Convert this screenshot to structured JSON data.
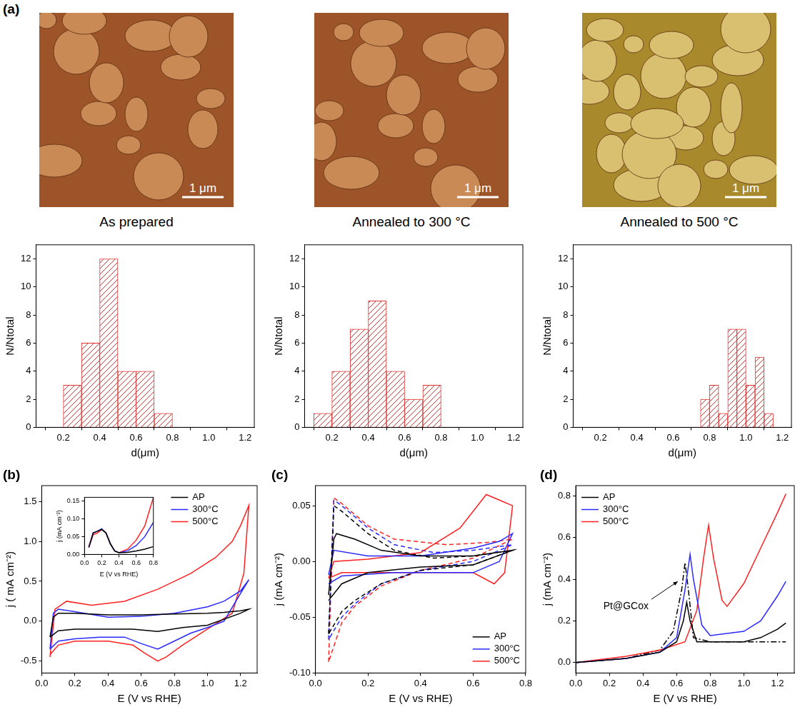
{
  "figure_a": {
    "panel": "(a)",
    "images": [
      {
        "caption": "As prepared",
        "scale_bar": "1 μm"
      },
      {
        "caption": "Annealed to 300 °C",
        "scale_bar": "1 μm"
      },
      {
        "caption": "Annealed to 500 °C",
        "scale_bar": "1 μm"
      }
    ]
  },
  "chart_data": [
    {
      "type": "histogram",
      "x_label": "d(μm)",
      "y_label": "N/Ntotal",
      "bins": [
        0.2,
        0.3,
        0.4,
        0.5,
        0.6,
        0.7,
        0.8
      ],
      "values": [
        3,
        6,
        12,
        4,
        4,
        1
      ],
      "color": "#e03030",
      "xlim": [
        0.05,
        1.25
      ],
      "xticks": [
        0.2,
        0.4,
        0.6,
        0.8,
        {
          "value": 1.0,
          "label": "1.0"
        },
        1.2
      ],
      "ylim": [
        0,
        13
      ],
      "yticks": [
        0,
        2,
        4,
        6,
        8,
        10,
        12
      ]
    },
    {
      "type": "histogram",
      "x_label": "d(μm)",
      "y_label": "N/Ntotal",
      "bins": [
        0.1,
        0.2,
        0.3,
        0.4,
        0.5,
        0.6,
        0.7,
        0.8
      ],
      "values": [
        1,
        4,
        7,
        9,
        4,
        2,
        3
      ],
      "color": "#e03030",
      "xlim": [
        0.05,
        1.25
      ],
      "xticks": [
        0.2,
        0.4,
        0.6,
        0.8,
        {
          "value": 1.0,
          "label": "1.0"
        },
        1.2
      ],
      "ylim": [
        0,
        13
      ],
      "yticks": [
        0,
        2,
        4,
        6,
        8,
        10,
        12
      ]
    },
    {
      "type": "histogram",
      "x_label": "d(μm)",
      "y_label": "N/Ntotal",
      "bins": [
        0.75,
        0.8,
        0.85,
        0.9,
        0.95,
        1.0,
        1.05,
        1.1,
        1.15
      ],
      "values": [
        2,
        3,
        1,
        7,
        7,
        3,
        5,
        1
      ],
      "color": "#e03030",
      "xlim": [
        0.05,
        1.25
      ],
      "xticks": [
        0.2,
        0.4,
        0.6,
        0.8,
        {
          "value": 1.0,
          "label": "1.0"
        },
        1.2
      ],
      "ylim": [
        0,
        13
      ],
      "yticks": [
        0,
        2,
        4,
        6,
        8,
        10,
        12
      ]
    },
    {
      "type": "line",
      "panel": "(b)",
      "x_label": "E (V vs RHE)",
      "y_label": "j ( mA cm⁻²)",
      "xlim": [
        0,
        1.3
      ],
      "xticks": [
        {
          "value": 0,
          "label": "0.0"
        },
        0.2,
        0.4,
        0.6,
        0.8,
        {
          "value": 1.0,
          "label": "1.0"
        },
        1.2
      ],
      "ylim": [
        -0.65,
        1.7
      ],
      "yticks": [
        -0.5,
        {
          "value": 0,
          "label": "0.0"
        },
        0.5,
        {
          "value": 1.0,
          "label": "1.0"
        },
        1.5
      ],
      "legend": "upper center",
      "series": [
        {
          "name": "AP",
          "color": "#000000",
          "line_style": "solid",
          "x": [
            0.05,
            0.07,
            0.1,
            0.2,
            0.4,
            0.6,
            0.8,
            1.0,
            1.1,
            1.2,
            1.25,
            1.2,
            1.0,
            0.85,
            0.7,
            0.55,
            0.4,
            0.2,
            0.1,
            0.05
          ],
          "values": [
            -0.2,
            0.05,
            0.1,
            0.1,
            0.08,
            0.08,
            0.09,
            0.1,
            0.11,
            0.13,
            0.15,
            0.1,
            -0.05,
            -0.08,
            -0.13,
            -0.1,
            -0.1,
            -0.1,
            -0.12,
            -0.2
          ]
        },
        {
          "name": "300°C",
          "color": "#2a2aff",
          "line_style": "solid",
          "x": [
            0.05,
            0.07,
            0.1,
            0.2,
            0.4,
            0.6,
            0.8,
            1.0,
            1.1,
            1.2,
            1.25,
            1.2,
            1.1,
            1.0,
            0.9,
            0.8,
            0.7,
            0.6,
            0.5,
            0.35,
            0.2,
            0.1,
            0.05
          ],
          "values": [
            -0.35,
            0.1,
            0.15,
            0.12,
            0.05,
            0.06,
            0.1,
            0.18,
            0.25,
            0.38,
            0.52,
            0.35,
            0.0,
            -0.08,
            -0.15,
            -0.25,
            -0.35,
            -0.28,
            -0.2,
            -0.2,
            -0.22,
            -0.25,
            -0.35
          ]
        },
        {
          "name": "500°C",
          "color": "#ff2020",
          "line_style": "solid",
          "x": [
            0.05,
            0.08,
            0.15,
            0.3,
            0.5,
            0.7,
            0.9,
            1.05,
            1.15,
            1.2,
            1.25,
            1.22,
            1.15,
            1.0,
            0.85,
            0.75,
            0.7,
            0.62,
            0.55,
            0.4,
            0.2,
            0.1,
            0.05
          ],
          "values": [
            -0.45,
            0.15,
            0.25,
            0.2,
            0.25,
            0.4,
            0.6,
            0.8,
            1.0,
            1.2,
            1.45,
            0.6,
            0.1,
            -0.1,
            -0.3,
            -0.45,
            -0.5,
            -0.4,
            -0.3,
            -0.25,
            -0.25,
            -0.3,
            -0.42
          ]
        }
      ],
      "inset": {
        "type": "line",
        "x_label": "E (V vs RHE)",
        "y_label": "j (mA cm⁻²)",
        "xlim": [
          0,
          0.8
        ],
        "xticks": [
          {
            "value": 0,
            "label": "0.0"
          },
          0.2,
          0.4,
          0.6,
          0.8
        ],
        "ylim": [
          0,
          0.16
        ],
        "yticks": [
          {
            "value": 0,
            "label": "0.00"
          },
          0.05,
          {
            "value": 0.1,
            "label": "0.10"
          },
          0.15
        ],
        "series": [
          {
            "color": "#000000",
            "line_style": "solid",
            "x": [
              0.05,
              0.1,
              0.15,
              0.2,
              0.25,
              0.3,
              0.35,
              0.4,
              0.5,
              0.6,
              0.7,
              0.8
            ],
            "values": [
              0.02,
              0.06,
              0.065,
              0.07,
              0.06,
              0.03,
              0.01,
              0.005,
              0.006,
              0.01,
              0.015,
              0.022
            ]
          },
          {
            "color": "#2a2aff",
            "line_style": "solid",
            "x": [
              0.05,
              0.1,
              0.15,
              0.2,
              0.25,
              0.3,
              0.35,
              0.4,
              0.5,
              0.6,
              0.7,
              0.8
            ],
            "values": [
              0.02,
              0.06,
              0.065,
              0.072,
              0.06,
              0.03,
              0.01,
              0.005,
              0.01,
              0.025,
              0.05,
              0.09
            ]
          },
          {
            "color": "#ff2020",
            "line_style": "solid",
            "x": [
              0.05,
              0.1,
              0.15,
              0.2,
              0.25,
              0.3,
              0.35,
              0.4,
              0.5,
              0.6,
              0.7,
              0.8
            ],
            "values": [
              0.02,
              0.055,
              0.06,
              0.07,
              0.06,
              0.03,
              0.01,
              0.005,
              0.015,
              0.04,
              0.08,
              0.16
            ]
          }
        ]
      }
    },
    {
      "type": "line",
      "panel": "(c)",
      "x_label": "E (V vs RHE)",
      "y_label": "j (mA cm⁻²)",
      "xlim": [
        0,
        0.8
      ],
      "xticks": [
        {
          "value": 0,
          "label": "0.0"
        },
        0.2,
        0.4,
        0.6,
        0.8
      ],
      "ylim": [
        -0.1,
        0.068
      ],
      "yticks": [
        {
          "value": -0.1,
          "label": "-0.10"
        },
        -0.05,
        {
          "value": 0,
          "label": "0.00"
        },
        0.05
      ],
      "legend": "lower right",
      "series": [
        {
          "name": "AP",
          "color": "#000000",
          "line_style": "solid",
          "x": [
            0.05,
            0.07,
            0.08,
            0.15,
            0.25,
            0.4,
            0.6,
            0.75,
            0.6,
            0.4,
            0.2,
            0.1,
            0.05
          ],
          "values": [
            -0.03,
            0.02,
            0.025,
            0.02,
            0.01,
            0.005,
            0.005,
            0.01,
            -0.003,
            -0.005,
            -0.01,
            -0.02,
            -0.035
          ]
        },
        {
          "name": "300°C",
          "color": "#2a2aff",
          "line_style": "solid",
          "x": [
            0.05,
            0.07,
            0.2,
            0.4,
            0.6,
            0.7,
            0.75,
            0.7,
            0.6,
            0.5,
            0.3,
            0.1,
            0.05
          ],
          "values": [
            -0.012,
            0.01,
            0.005,
            0.005,
            0.012,
            0.018,
            0.025,
            0.0,
            -0.01,
            -0.01,
            -0.01,
            -0.013,
            -0.02
          ]
        },
        {
          "name": "500°C",
          "color": "#ff2020",
          "line_style": "solid",
          "x": [
            0.05,
            0.07,
            0.2,
            0.4,
            0.55,
            0.65,
            0.7,
            0.75,
            0.72,
            0.68,
            0.6,
            0.4,
            0.1,
            0.05
          ],
          "values": [
            -0.015,
            0.0,
            0.002,
            0.008,
            0.03,
            0.06,
            0.055,
            0.05,
            -0.01,
            -0.02,
            -0.01,
            -0.01,
            -0.01,
            -0.015
          ]
        },
        {
          "color": "#000000",
          "line_style": "dashed",
          "x": [
            0.05,
            0.07,
            0.1,
            0.2,
            0.3,
            0.45,
            0.6,
            0.75,
            0.6,
            0.4,
            0.25,
            0.15,
            0.1,
            0.05
          ],
          "values": [
            -0.065,
            0.05,
            0.045,
            0.025,
            0.01,
            0.003,
            0.005,
            0.01,
            -0.003,
            -0.008,
            -0.02,
            -0.035,
            -0.045,
            -0.065
          ]
        },
        {
          "color": "#2a2aff",
          "line_style": "dashed",
          "x": [
            0.05,
            0.07,
            0.1,
            0.2,
            0.3,
            0.45,
            0.6,
            0.75,
            0.6,
            0.4,
            0.25,
            0.15,
            0.1,
            0.05
          ],
          "values": [
            -0.07,
            0.055,
            0.05,
            0.03,
            0.015,
            0.008,
            0.01,
            0.015,
            0.0,
            -0.008,
            -0.02,
            -0.038,
            -0.05,
            -0.07
          ]
        },
        {
          "color": "#ff2020",
          "line_style": "dashed",
          "x": [
            0.05,
            0.07,
            0.1,
            0.2,
            0.3,
            0.5,
            0.65,
            0.75,
            0.6,
            0.4,
            0.25,
            0.15,
            0.1,
            0.05
          ],
          "values": [
            -0.09,
            0.057,
            0.052,
            0.032,
            0.02,
            0.015,
            0.017,
            0.02,
            0.003,
            -0.008,
            -0.022,
            -0.04,
            -0.055,
            -0.09
          ]
        }
      ]
    },
    {
      "type": "line",
      "panel": "(d)",
      "x_label": "E (V vs RHE)",
      "y_label": "j (mA cm⁻²)",
      "xlim": [
        0,
        1.3
      ],
      "xticks": [
        {
          "value": 0,
          "label": "0.0"
        },
        0.2,
        0.4,
        0.6,
        0.8,
        {
          "value": 1.0,
          "label": "1.0"
        },
        1.2
      ],
      "ylim": [
        -0.05,
        0.85
      ],
      "yticks": [
        {
          "value": 0,
          "label": "0.0"
        },
        0.2,
        0.4,
        0.6,
        0.8
      ],
      "legend": "upper left",
      "annotations": [
        {
          "text": "Pt@GCox",
          "x": 0.62,
          "y": 0.4
        }
      ],
      "series": [
        {
          "name": "AP",
          "color": "#000000",
          "line_style": "solid",
          "x": [
            0.0,
            0.3,
            0.5,
            0.6,
            0.64,
            0.66,
            0.68,
            0.72,
            0.8,
            1.0,
            1.1,
            1.2,
            1.25
          ],
          "values": [
            0.0,
            0.02,
            0.05,
            0.1,
            0.2,
            0.29,
            0.2,
            0.1,
            0.1,
            0.1,
            0.12,
            0.16,
            0.19
          ]
        },
        {
          "name": "300°C",
          "color": "#2a2aff",
          "line_style": "solid",
          "x": [
            0.0,
            0.3,
            0.5,
            0.6,
            0.65,
            0.68,
            0.7,
            0.75,
            0.8,
            1.0,
            1.1,
            1.2,
            1.25
          ],
          "values": [
            0.0,
            0.02,
            0.05,
            0.12,
            0.35,
            0.52,
            0.4,
            0.18,
            0.13,
            0.15,
            0.2,
            0.32,
            0.39
          ]
        },
        {
          "name": "500°C",
          "color": "#ff2020",
          "line_style": "solid",
          "x": [
            0.0,
            0.3,
            0.5,
            0.65,
            0.72,
            0.76,
            0.79,
            0.82,
            0.87,
            0.9,
            1.0,
            1.1,
            1.2,
            1.25
          ],
          "values": [
            0.0,
            0.03,
            0.06,
            0.1,
            0.25,
            0.5,
            0.66,
            0.5,
            0.3,
            0.27,
            0.38,
            0.55,
            0.72,
            0.81
          ]
        },
        {
          "color": "#000000",
          "line_style": "dashdot",
          "x": [
            0.0,
            0.3,
            0.5,
            0.58,
            0.63,
            0.65,
            0.67,
            0.7,
            0.8,
            1.0,
            1.25
          ],
          "values": [
            0.0,
            0.02,
            0.06,
            0.15,
            0.35,
            0.48,
            0.35,
            0.12,
            0.1,
            0.1,
            0.1
          ]
        }
      ]
    }
  ]
}
